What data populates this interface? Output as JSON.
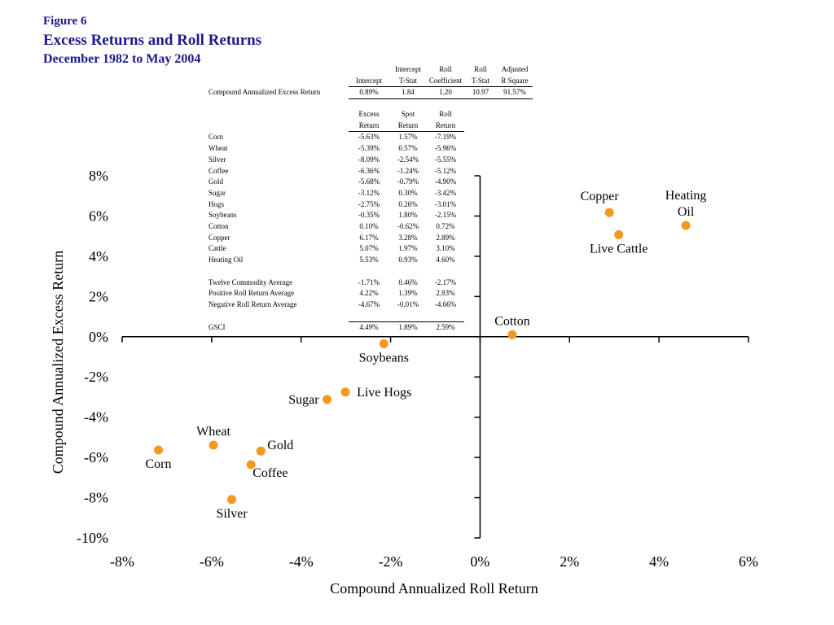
{
  "header": {
    "figure_label": "Figure 6",
    "title": "Excess Returns and Roll Returns",
    "subtitle": "December 1982 to May 2004"
  },
  "regression_table": {
    "headers_line1": [
      "",
      "",
      "Intercept",
      "Roll",
      "Roll",
      "Adjusted"
    ],
    "headers_line2": [
      "",
      "Intercept",
      "T-Stat",
      "Coefficient",
      "T-Stat",
      "R Square"
    ],
    "row": [
      "Compound Annualized Excess Return",
      "0.89%",
      "1.84",
      "1.20",
      "10.97",
      "91.57%"
    ]
  },
  "returns_table": {
    "headers_line1": [
      "",
      "Excess",
      "Spot",
      "Roll"
    ],
    "headers_line2": [
      "",
      "Return",
      "Return",
      "Return"
    ],
    "rows": [
      [
        "Corn",
        "-5.63%",
        "1.57%",
        "-7.19%"
      ],
      [
        "Wheat",
        "-5.39%",
        "0.57%",
        "-5.96%"
      ],
      [
        "Silver",
        "-8.09%",
        "-2.54%",
        "-5.55%"
      ],
      [
        "Coffee",
        "-6.36%",
        "-1.24%",
        "-5.12%"
      ],
      [
        "Gold",
        "-5.68%",
        "-0.79%",
        "-4.90%"
      ],
      [
        "Sugar",
        "-3.12%",
        "0.30%",
        "-3.42%"
      ],
      [
        "Hogs",
        "-2.75%",
        "0.26%",
        "-3.01%"
      ],
      [
        "Soybeans",
        "-0.35%",
        "1.80%",
        "-2.15%"
      ],
      [
        "Cotton",
        "0.10%",
        "-0.62%",
        "0.72%"
      ],
      [
        "Copper",
        "6.17%",
        "3.28%",
        "2.89%"
      ],
      [
        "Cattle",
        "5.07%",
        "1.97%",
        "3.10%"
      ],
      [
        "Heating Oil",
        "5.53%",
        "0.93%",
        "4.60%"
      ]
    ],
    "summary_rows": [
      [
        "Twelve Commodity Average",
        "-1.71%",
        "0.46%",
        "-2.17%"
      ],
      [
        "Positive Roll Return Average",
        "4.22%",
        "1.39%",
        "2.83%"
      ],
      [
        "Negative Roll Return Average",
        "-4.67%",
        "-0.01%",
        "-4.66%"
      ]
    ],
    "gsci_row": [
      "GSCI",
      "4.49%",
      "1.89%",
      "2.59%"
    ]
  },
  "chart_data": {
    "type": "scatter",
    "xlabel": "Compound Annualized Roll Return",
    "ylabel": "Compound Annualized Excess Return",
    "xlim": [
      -8,
      6
    ],
    "ylim": [
      -10,
      8
    ],
    "x_ticks": [
      -8,
      -6,
      -4,
      -2,
      0,
      2,
      4,
      6
    ],
    "y_ticks": [
      -10,
      -8,
      -6,
      -4,
      -2,
      0,
      2,
      4,
      6,
      8
    ],
    "x_tick_labels": [
      "-8%",
      "-6%",
      "-4%",
      "-2%",
      "0%",
      "2%",
      "4%",
      "6%"
    ],
    "y_tick_labels": [
      "-10%",
      "-8%",
      "-6%",
      "-4%",
      "-2%",
      "0%",
      "2%",
      "4%",
      "6%",
      "8%"
    ],
    "marker_color": "#f39a1e",
    "grid": false,
    "points": [
      {
        "label": "Corn",
        "x": -7.19,
        "y": -5.63,
        "label_pos": "below"
      },
      {
        "label": "Wheat",
        "x": -5.96,
        "y": -5.39,
        "label_pos": "above"
      },
      {
        "label": "Silver",
        "x": -5.55,
        "y": -8.09,
        "label_pos": "below"
      },
      {
        "label": "Coffee",
        "x": -5.12,
        "y": -6.36,
        "label_pos": "below-right"
      },
      {
        "label": "Gold",
        "x": -4.9,
        "y": -5.68,
        "label_pos": "above-right"
      },
      {
        "label": "Sugar",
        "x": -3.42,
        "y": -3.12,
        "label_pos": "left"
      },
      {
        "label": "Live Hogs",
        "x": -3.01,
        "y": -2.75,
        "label_pos": "right"
      },
      {
        "label": "Soybeans",
        "x": -2.15,
        "y": -0.35,
        "label_pos": "below"
      },
      {
        "label": "Cotton",
        "x": 0.72,
        "y": 0.1,
        "label_pos": "above"
      },
      {
        "label": "Copper",
        "x": 2.89,
        "y": 6.17,
        "label_pos": "above-left"
      },
      {
        "label": "Live Cattle",
        "x": 3.1,
        "y": 5.07,
        "label_pos": "below"
      },
      {
        "label": "Heating\nOil",
        "x": 4.6,
        "y": 5.53,
        "label_pos": "above"
      }
    ]
  }
}
